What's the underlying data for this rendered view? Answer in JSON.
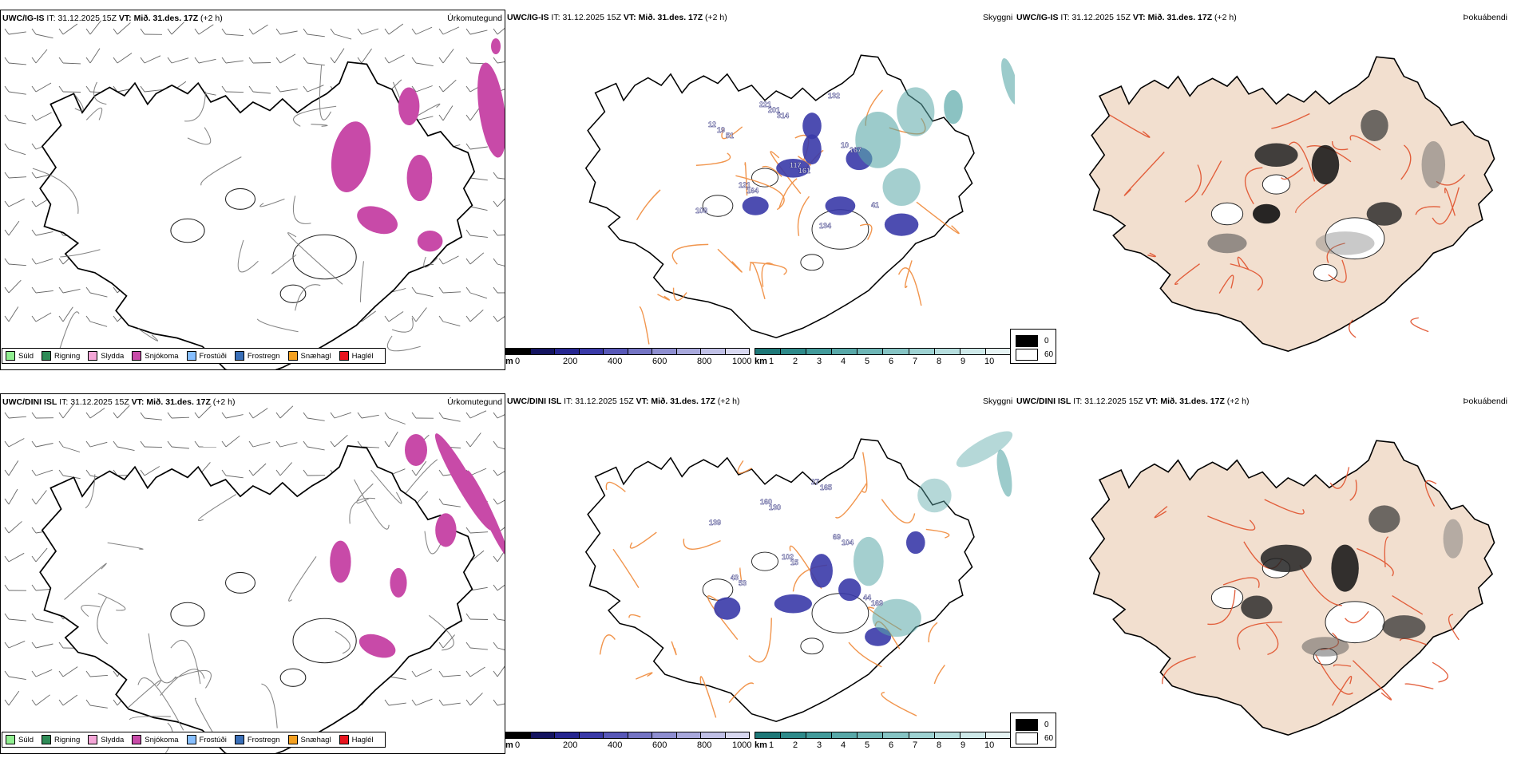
{
  "rows": [
    {
      "model": "UWC/IG-IS",
      "it_label": "IT:",
      "it_value": "31.12.2025 15Z",
      "vt_label": "VT:",
      "vt_value": "Mið. 31.des. 17Z",
      "lead": "(+2 h)",
      "panel_names": [
        "Úrkomutegund",
        "Skyggni",
        "Þokuábendi"
      ],
      "visibility_labels": [
        "51",
        "314",
        "132",
        "108",
        "164",
        "161",
        "167",
        "19",
        "201",
        "134",
        "41",
        "121",
        "117",
        "10",
        "12",
        "221"
      ]
    },
    {
      "model": "UWC/DINI ISL",
      "it_label": "IT:",
      "it_value": "31.12.2025 15Z",
      "vt_label": "VT:",
      "vt_value": "Mið. 31.des. 17Z",
      "lead": "(+2 h)",
      "panel_names": [
        "Úrkomutegund",
        "Skyggni",
        "Þokuábendi"
      ],
      "visibility_labels": [
        "130",
        "165",
        "169",
        "53",
        "15",
        "104",
        "139",
        "160",
        "27",
        "44",
        "43",
        "102",
        "69"
      ]
    }
  ],
  "precip_legend": [
    {
      "label": "Súld",
      "color": "#90ee90"
    },
    {
      "label": "Rigning",
      "color": "#2e8b57"
    },
    {
      "label": "Slydda",
      "color": "#f4a6d7"
    },
    {
      "label": "Snjókoma",
      "color": "#c84aa8"
    },
    {
      "label": "Frostúði",
      "color": "#87bfff"
    },
    {
      "label": "Frostregn",
      "color": "#3a6fb8"
    },
    {
      "label": "Snæhagl",
      "color": "#f4a020"
    },
    {
      "label": "Haglél",
      "color": "#e8141e"
    }
  ],
  "cloud_base_bar": {
    "unit": "m",
    "ticks": [
      "0",
      "200",
      "400",
      "600",
      "800",
      "1000"
    ],
    "colors": [
      "#000000",
      "#141460",
      "#262690",
      "#3a3aa8",
      "#5858b8",
      "#7474c4",
      "#8e8ed0",
      "#a8a8dc",
      "#c0c0e6",
      "#d8d8f0"
    ]
  },
  "visibility_bar": {
    "unit": "km",
    "ticks": [
      "1",
      "2",
      "3",
      "4",
      "5",
      "6",
      "7",
      "8",
      "9",
      "10"
    ],
    "colors": [
      "#1e7878",
      "#2e8a8a",
      "#429a9a",
      "#58a8a8",
      "#6eb6b6",
      "#86c4c4",
      "#9ed2d2",
      "#b6dede",
      "#cee9e9",
      "#e6f4f4"
    ]
  },
  "fog_legend": [
    {
      "label": "0",
      "color": "#000000"
    },
    {
      "label": "60",
      "color": "#ffffff"
    }
  ],
  "colors": {
    "land_fog": "#f2dfcf",
    "roads": "#ef8a3a",
    "snow": "#c84aa8",
    "cloud_blue": "#3a3aa8",
    "vis_teal": "#5aa8a8"
  }
}
